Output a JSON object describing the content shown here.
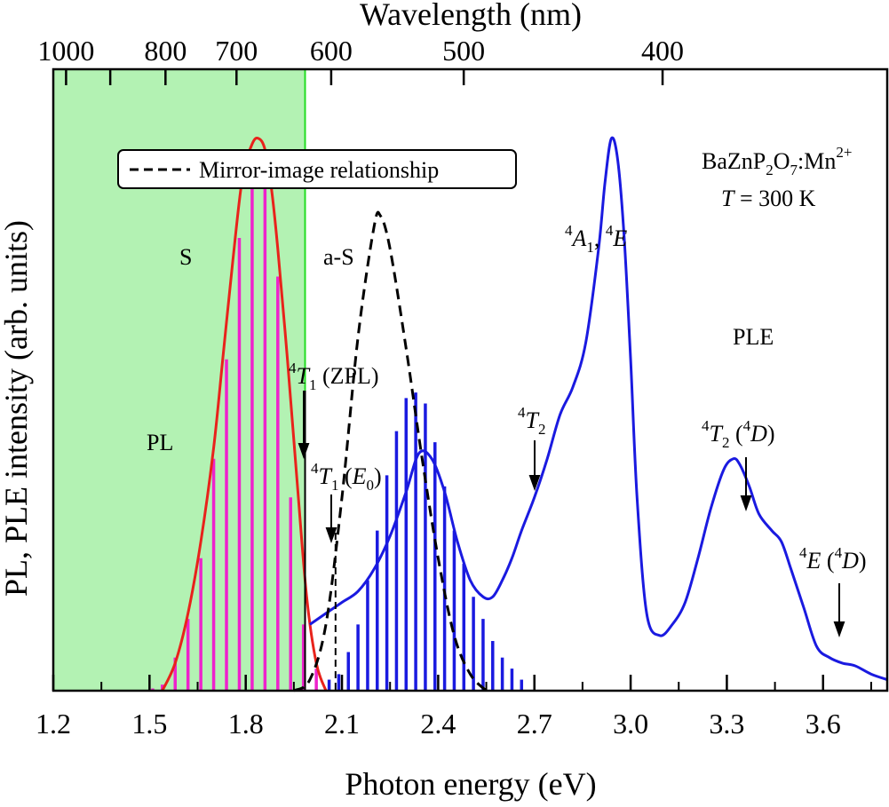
{
  "chart_data": {
    "type": "line",
    "xlabel": "Photon energy (eV)",
    "ylabel": "PL, PLE intensity (arb. units)",
    "top_axis_label": "Wavelength (nm)",
    "xlim": [
      1.2,
      3.8
    ],
    "ylim": [
      0,
      1.0
    ],
    "x_ticks": [
      1.2,
      1.5,
      1.8,
      2.1,
      2.4,
      2.7,
      3.0,
      3.3,
      3.6
    ],
    "x_tick_labels": [
      "1.2",
      "1.5",
      "1.8",
      "2.1",
      "2.4",
      "2.7",
      "3.0",
      "3.3",
      "3.6"
    ],
    "top_ticks_nm": [
      1000,
      800,
      700,
      600,
      500,
      400
    ],
    "top_tick_labels": [
      "1000",
      "800",
      "700",
      "600",
      "500",
      "400"
    ],
    "top_minor_ticks_nm": [
      900
    ],
    "shaded_region": {
      "x_from": 1.2,
      "x_to": 1.985,
      "color": "#b3f2b3",
      "edge_color": "#22dd22"
    },
    "series": [
      {
        "name": "PL",
        "color": "#e8231b",
        "style": "solid",
        "x": [
          1.54,
          1.58,
          1.62,
          1.66,
          1.7,
          1.73,
          1.76,
          1.79,
          1.82,
          1.84,
          1.86,
          1.88,
          1.9,
          1.93,
          1.96,
          1.99,
          2.02,
          2.05
        ],
        "y": [
          0.0,
          0.05,
          0.14,
          0.27,
          0.44,
          0.61,
          0.78,
          0.93,
          0.99,
          1.0,
          0.98,
          0.91,
          0.8,
          0.6,
          0.38,
          0.17,
          0.05,
          0.0
        ]
      },
      {
        "name": "PLE",
        "color": "#1a1ae0",
        "style": "solid",
        "x": [
          2.0,
          2.05,
          2.1,
          2.15,
          2.2,
          2.25,
          2.3,
          2.34,
          2.38,
          2.42,
          2.46,
          2.5,
          2.54,
          2.57,
          2.6,
          2.63,
          2.66,
          2.7,
          2.74,
          2.78,
          2.82,
          2.86,
          2.9,
          2.92,
          2.94,
          2.96,
          2.98,
          3.0,
          3.02,
          3.05,
          3.09,
          3.13,
          3.17,
          3.21,
          3.25,
          3.29,
          3.32,
          3.34,
          3.37,
          3.4,
          3.44,
          3.47,
          3.5,
          3.54,
          3.58,
          3.62,
          3.66,
          3.7,
          3.75,
          3.8
        ],
        "y": [
          0.12,
          0.14,
          0.16,
          0.18,
          0.22,
          0.28,
          0.36,
          0.43,
          0.42,
          0.36,
          0.27,
          0.2,
          0.17,
          0.17,
          0.2,
          0.24,
          0.29,
          0.35,
          0.42,
          0.5,
          0.55,
          0.63,
          0.8,
          0.92,
          1.0,
          0.96,
          0.82,
          0.6,
          0.35,
          0.14,
          0.1,
          0.12,
          0.16,
          0.24,
          0.33,
          0.4,
          0.42,
          0.41,
          0.37,
          0.32,
          0.29,
          0.27,
          0.22,
          0.15,
          0.08,
          0.06,
          0.05,
          0.045,
          0.03,
          0.02
        ]
      },
      {
        "name": "Mirror-image relationship",
        "color": "#000000",
        "style": "dashed",
        "x": [
          1.95,
          2.0,
          2.05,
          2.1,
          2.15,
          2.2,
          2.22,
          2.25,
          2.3,
          2.35,
          2.4,
          2.45,
          2.5,
          2.55
        ],
        "y": [
          0.0,
          0.02,
          0.12,
          0.35,
          0.64,
          0.84,
          0.86,
          0.8,
          0.62,
          0.42,
          0.24,
          0.1,
          0.03,
          0.0
        ]
      }
    ],
    "bars": [
      {
        "name": "PL vibronic",
        "color": "#ee22cc",
        "x": [
          1.51,
          1.54,
          1.58,
          1.62,
          1.66,
          1.7,
          1.74,
          1.78,
          1.82,
          1.86,
          1.9,
          1.94,
          1.98,
          2.02
        ],
        "y": [
          0.004,
          0.011,
          0.06,
          0.13,
          0.24,
          0.42,
          0.6,
          0.82,
          0.95,
          0.96,
          0.75,
          0.35,
          0.12,
          0.04
        ]
      },
      {
        "name": "PLE vibronic",
        "color": "#1a1ae0",
        "x": [
          2.06,
          2.09,
          2.12,
          2.15,
          2.18,
          2.21,
          2.24,
          2.27,
          2.3,
          2.33,
          2.36,
          2.39,
          2.42,
          2.45,
          2.48,
          2.51,
          2.54,
          2.57,
          2.6,
          2.63,
          2.66
        ],
        "y": [
          0.02,
          0.03,
          0.07,
          0.12,
          0.2,
          0.29,
          0.39,
          0.47,
          0.53,
          0.54,
          0.52,
          0.45,
          0.37,
          0.29,
          0.23,
          0.17,
          0.13,
          0.09,
          0.06,
          0.04,
          0.02
        ]
      }
    ],
    "marker_lines": [
      {
        "x": 1.985,
        "style": "solid"
      },
      {
        "x": 2.08,
        "style": "dashed"
      }
    ],
    "annotations": {
      "legend_label": "Mirror-image relationship",
      "compound_main": "BaZnP",
      "compound_sub1": "2",
      "compound_o": "O",
      "compound_sub2": "7",
      "compound_mn": ":Mn",
      "compound_sup": "2+",
      "temp_T": "T",
      "temp_value": " = 300 K",
      "region_s": "S",
      "region_as": "a-S",
      "pl_label": "PL",
      "ple_label": "PLE",
      "zpl_sup": "4",
      "zpl_T": "T",
      "zpl_sub": "1",
      "zpl_rest": " (ZPL)",
      "e0_sup": "4",
      "e0_T": "T",
      "e0_sub": "1",
      "e0_open": " (",
      "e0_E": "E",
      "e0_sub2": "0",
      "e0_close": ")",
      "t2_sup": "4",
      "t2_T": "T",
      "t2_sub": "2",
      "a1_sup": "4",
      "a1_A": "A",
      "a1_sub": "1",
      "a1_comma": ", ",
      "a1_sup2": "4",
      "a1_E": "E",
      "t2d_sup": "4",
      "t2d_T": "T",
      "t2d_sub": "2",
      "t2d_open": " (",
      "t2d_sup2": "4",
      "t2d_D": "D",
      "t2d_close": ")",
      "ed_sup": "4",
      "ed_E": "E",
      "ed_open": " (",
      "ed_sup2": "4",
      "ed_D": "D",
      "ed_close": ")"
    },
    "colors": {
      "pl": "#e8231b",
      "ple": "#1a1ae0",
      "bars_pl": "#ee22cc",
      "shade": "#b3f2b3",
      "shade_edge": "#22dd22"
    }
  }
}
